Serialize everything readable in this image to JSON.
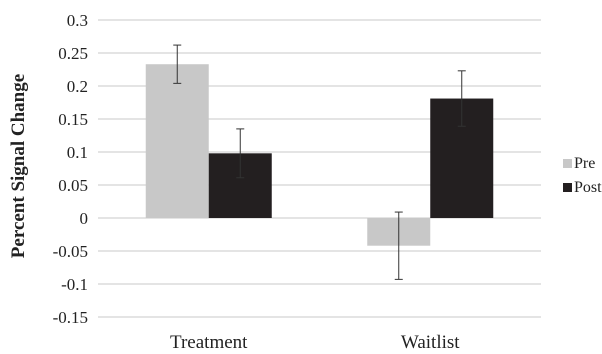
{
  "chart_data": {
    "type": "bar",
    "title": "",
    "xlabel": "",
    "ylabel": "Percent Signal Change",
    "categories": [
      "Treatment",
      "Waitlist"
    ],
    "series": [
      {
        "name": "Pre",
        "color": "#c8c8c8",
        "values": [
          0.233,
          -0.042
        ],
        "error": [
          0.029,
          0.051
        ]
      },
      {
        "name": "Post",
        "color": "#231f20",
        "values": [
          0.098,
          0.181
        ],
        "error": [
          0.037,
          0.042
        ]
      }
    ],
    "ylim": [
      -0.15,
      0.3
    ],
    "yticks": [
      0.3,
      0.25,
      0.2,
      0.15,
      0.1,
      0.05,
      0,
      -0.05,
      -0.1,
      -0.15
    ],
    "ytick_labels": [
      "0.3",
      "0.25",
      "0.2",
      "0.15",
      "0.1",
      "0.05",
      "0",
      "-0.05",
      "-0.1",
      "-0.15"
    ],
    "grid": true,
    "legend": "right"
  }
}
